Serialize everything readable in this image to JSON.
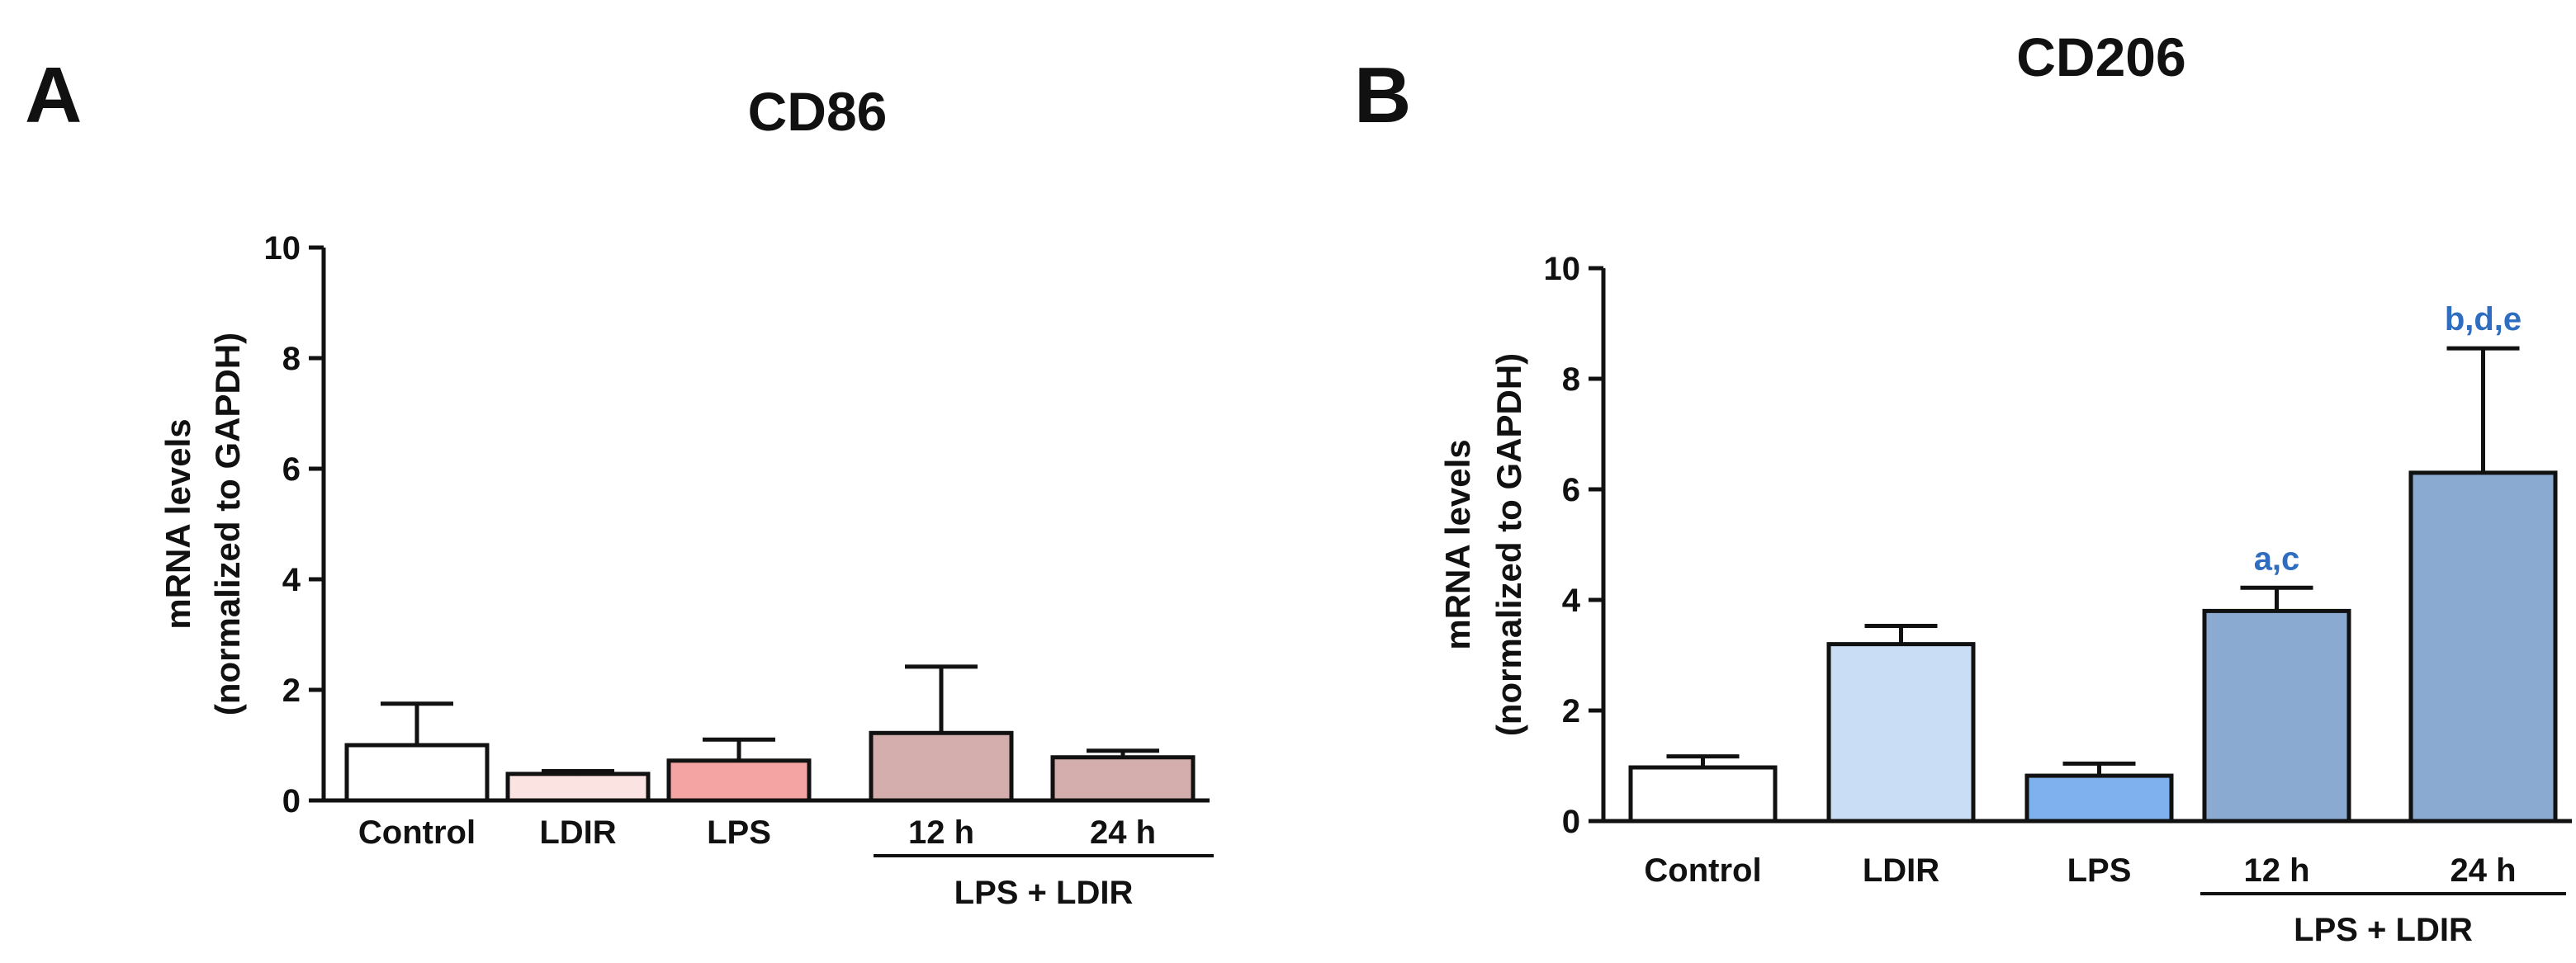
{
  "chart_data": [
    {
      "panel": "A",
      "type": "bar",
      "title": "CD86",
      "ylabel_line1": "mRNA levels",
      "ylabel_line2": "(normalized to GAPDH)",
      "ylim": [
        0,
        10
      ],
      "yticks": [
        "0",
        "2",
        "4",
        "6",
        "8",
        "10"
      ],
      "categories": [
        "Control",
        "LDIR",
        "LPS",
        "12 h",
        "24 h"
      ],
      "values": [
        1.0,
        0.48,
        0.72,
        1.22,
        0.78
      ],
      "errors": [
        0.75,
        0.05,
        0.38,
        1.2,
        0.12
      ],
      "colors": [
        "#ffffff",
        "#fbe3e1",
        "#f4a5a3",
        "#d4aeac",
        "#d4aeac"
      ],
      "annotations": [
        "",
        "",
        "",
        "",
        ""
      ],
      "group_label": "LPS + LDIR",
      "grid": false
    },
    {
      "panel": "B",
      "type": "bar",
      "title": "CD206",
      "ylabel_line1": "mRNA levels",
      "ylabel_line2": "(normalized to GAPDH)",
      "ylim": [
        0,
        10
      ],
      "yticks": [
        "0",
        "2",
        "4",
        "6",
        "8",
        "10"
      ],
      "categories": [
        "Control",
        "LDIR",
        "LPS",
        "12 h",
        "24 h"
      ],
      "values": [
        0.97,
        3.2,
        0.82,
        3.8,
        6.3
      ],
      "errors": [
        0.2,
        0.33,
        0.22,
        0.42,
        2.25
      ],
      "colors": [
        "#ffffff",
        "#c9ddf5",
        "#7fb1ee",
        "#8aaad2",
        "#8aaad2"
      ],
      "annotations": [
        "",
        "",
        "",
        "a,c",
        "b,d,e"
      ],
      "annotation_color": "#2f6dc0",
      "group_label": "LPS + LDIR",
      "grid": false
    }
  ]
}
